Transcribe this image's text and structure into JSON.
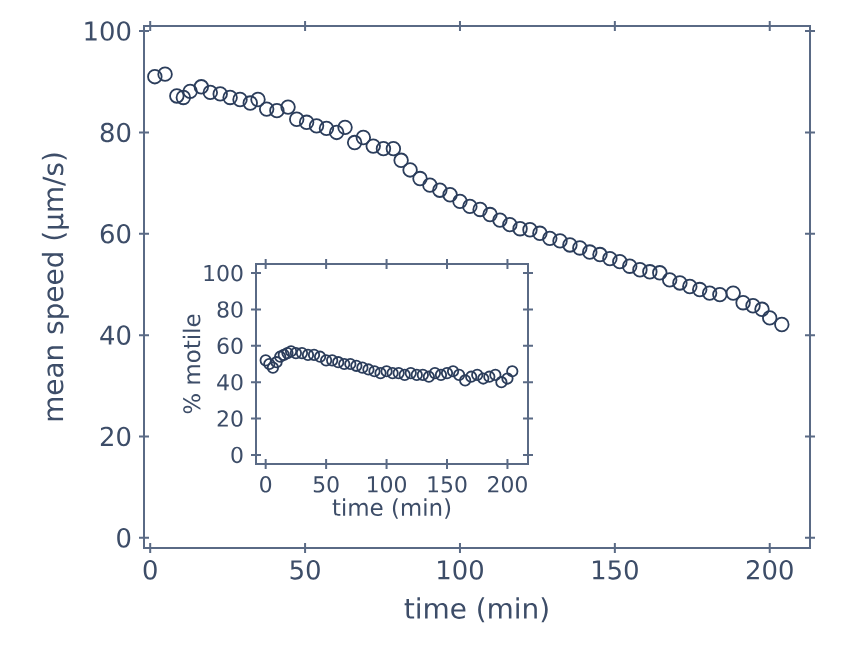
{
  "chart_data": [
    {
      "type": "scatter",
      "xlabel": "time (min)",
      "ylabel": "mean speed (µm/s)",
      "color": "#2b3d5b",
      "marker": "circle",
      "grid": false,
      "xlim": [
        -2,
        213
      ],
      "ylim": [
        -2,
        101
      ],
      "xticks": [
        0,
        50,
        100,
        150,
        200
      ],
      "yticks": [
        0,
        20,
        40,
        60,
        80,
        100
      ],
      "x": [
        1.5,
        4.8,
        8.6,
        10.7,
        12.9,
        16.5,
        19.4,
        22.6,
        25.8,
        29,
        32.3,
        34.8,
        37.6,
        40.9,
        44.5,
        47.3,
        50.5,
        53.7,
        56.9,
        60.2,
        62.9,
        66,
        68.8,
        72,
        75.3,
        78.5,
        81,
        83.9,
        87.1,
        90.3,
        93.5,
        96.8,
        100,
        103.2,
        106.5,
        109.7,
        112.9,
        116.1,
        119.4,
        122.6,
        125.8,
        129,
        132.3,
        135.5,
        138.7,
        141.9,
        145.2,
        148.4,
        151.6,
        154.8,
        158.1,
        161.3,
        164.5,
        167.7,
        171,
        174.2,
        177.4,
        180.6,
        183.9,
        188.2,
        191.4,
        194.6,
        197.5,
        200,
        203.9
      ],
      "values": [
        91,
        91.5,
        87.2,
        86.9,
        88.1,
        89,
        87.9,
        87.6,
        86.9,
        86.5,
        85.8,
        86.5,
        84.6,
        84.3,
        85,
        82.6,
        82,
        81.3,
        80.8,
        80,
        81,
        78,
        79,
        77.3,
        76.8,
        76.8,
        74.5,
        72.6,
        70.9,
        69.6,
        68.6,
        67.7,
        66.4,
        65.4,
        64.8,
        63.8,
        62.7,
        61.8,
        61,
        60.8,
        60.1,
        59.1,
        58.6,
        57.8,
        57.2,
        56.4,
        55.9,
        55.1,
        54.5,
        53.6,
        52.9,
        52.5,
        52.3,
        50.9,
        50.3,
        49.6,
        49,
        48.3,
        48,
        48.3,
        46.4,
        45.8,
        45.1,
        43.4,
        42.1
      ]
    },
    {
      "type": "scatter",
      "xlabel": "time (min)",
      "ylabel": "% motile",
      "color": "#2b3d5b",
      "marker": "circle",
      "grid": false,
      "xlim": [
        -8,
        217
      ],
      "ylim": [
        -5,
        105
      ],
      "xticks": [
        0,
        50,
        100,
        150,
        200
      ],
      "yticks": [
        0,
        20,
        40,
        60,
        80,
        100
      ],
      "x": [
        0,
        3,
        6,
        9,
        12,
        15,
        18,
        21,
        25,
        30,
        35,
        40,
        45,
        50,
        55,
        60,
        65,
        70,
        75,
        80,
        85,
        90,
        95,
        100,
        105,
        110,
        115,
        120,
        125,
        130,
        135,
        140,
        145,
        150,
        155,
        160,
        165,
        170,
        175,
        180,
        185,
        190,
        195,
        200,
        204
      ],
      "values": [
        52,
        50,
        48,
        51,
        54,
        55,
        56,
        57,
        56,
        56,
        55,
        55,
        54,
        52,
        52,
        51,
        50,
        50,
        49,
        48,
        47,
        46,
        45,
        46,
        45,
        45,
        44,
        45,
        44,
        44,
        43,
        45,
        44,
        45,
        46,
        44,
        41,
        43,
        44,
        42,
        43,
        44,
        40,
        42,
        46
      ]
    }
  ]
}
